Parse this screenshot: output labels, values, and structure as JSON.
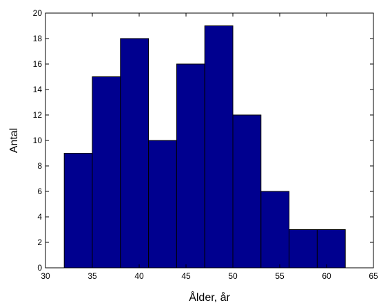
{
  "chart_data": {
    "type": "bar",
    "title": "",
    "xlabel": "Ålder, år",
    "ylabel": "Antal",
    "xlim": [
      30,
      65
    ],
    "ylim": [
      0,
      20
    ],
    "xticks": [
      30,
      35,
      40,
      45,
      50,
      55,
      60,
      65
    ],
    "yticks": [
      0,
      2,
      4,
      6,
      8,
      10,
      12,
      14,
      16,
      18,
      20
    ],
    "bin_edges": [
      32,
      35,
      38,
      41,
      44,
      47,
      50,
      53,
      56,
      59,
      62
    ],
    "values": [
      9,
      15,
      18,
      10,
      16,
      19,
      12,
      6,
      3,
      3
    ],
    "bar_color": "#00008f",
    "grid": false
  }
}
